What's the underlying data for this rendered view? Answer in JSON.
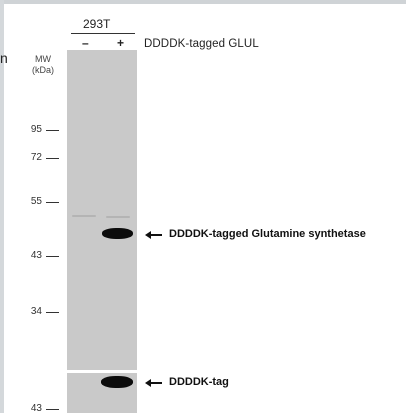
{
  "stray_text": "n",
  "cell_line": "293T",
  "lanes": [
    "–",
    "+"
  ],
  "condition_label": "DDDDK-tagged GLUL",
  "mw_header": [
    "MW",
    "(kDa)"
  ],
  "markers_main": [
    "95",
    "72",
    "55",
    "43",
    "34"
  ],
  "markers_tag": [
    "43"
  ],
  "annotations": {
    "main_band": "DDDDK-tagged Glutamine synthetase",
    "tag_band": "DDDDK-tag"
  }
}
